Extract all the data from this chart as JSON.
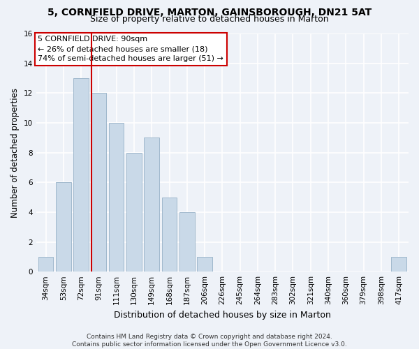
{
  "title1": "5, CORNFIELD DRIVE, MARTON, GAINSBOROUGH, DN21 5AT",
  "title2": "Size of property relative to detached houses in Marton",
  "xlabel": "Distribution of detached houses by size in Marton",
  "ylabel": "Number of detached properties",
  "categories": [
    "34sqm",
    "53sqm",
    "72sqm",
    "91sqm",
    "111sqm",
    "130sqm",
    "149sqm",
    "168sqm",
    "187sqm",
    "206sqm",
    "226sqm",
    "245sqm",
    "264sqm",
    "283sqm",
    "302sqm",
    "321sqm",
    "340sqm",
    "360sqm",
    "379sqm",
    "398sqm",
    "417sqm"
  ],
  "values": [
    1,
    6,
    13,
    12,
    10,
    8,
    9,
    5,
    4,
    1,
    0,
    0,
    0,
    0,
    0,
    0,
    0,
    0,
    0,
    0,
    1
  ],
  "bar_color": "#c9d9e8",
  "bar_edge_color": "#a0b8cc",
  "vline_x_index": 3,
  "vline_color": "#cc0000",
  "annotation_text": "5 CORNFIELD DRIVE: 90sqm\n← 26% of detached houses are smaller (18)\n74% of semi-detached houses are larger (51) →",
  "annotation_box_color": "#cc0000",
  "ylim": [
    0,
    16
  ],
  "yticks": [
    0,
    2,
    4,
    6,
    8,
    10,
    12,
    14,
    16
  ],
  "footer": "Contains HM Land Registry data © Crown copyright and database right 2024.\nContains public sector information licensed under the Open Government Licence v3.0.",
  "bg_color": "#eef2f8",
  "grid_color": "#ffffff",
  "title1_fontsize": 10,
  "title2_fontsize": 9,
  "xlabel_fontsize": 9,
  "ylabel_fontsize": 8.5,
  "tick_fontsize": 7.5,
  "annotation_fontsize": 8,
  "footer_fontsize": 6.5
}
